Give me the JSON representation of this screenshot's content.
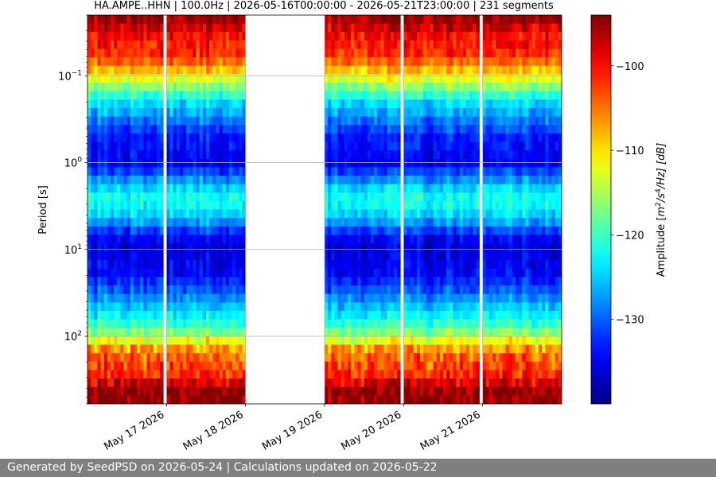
{
  "chart_data": {
    "type": "heatmap",
    "title": "HA.AMPE..HHN | 100.0Hz | 2026-05-16T00:00:00 - 2026-05-21T23:00:00 | 231 segments",
    "ylabel": "Period [s]",
    "y_scale": "log",
    "y_inverted": true,
    "y_range": [
      0.02,
      600
    ],
    "y_ticks": [
      {
        "value": 0.1,
        "base": "10",
        "exp": "−1"
      },
      {
        "value": 1,
        "base": "10",
        "exp": "0"
      },
      {
        "value": 10,
        "base": "10",
        "exp": "1"
      },
      {
        "value": 100,
        "base": "10",
        "exp": "2"
      }
    ],
    "x_range": [
      "2026-05-16T00:00:00",
      "2026-05-22T00:00:00"
    ],
    "x_ticks": [
      {
        "date": "2026-05-17",
        "label": "May 17 2026"
      },
      {
        "date": "2026-05-18",
        "label": "May 18 2026"
      },
      {
        "date": "2026-05-19",
        "label": "May 19 2026"
      },
      {
        "date": "2026-05-20",
        "label": "May 20 2026"
      },
      {
        "date": "2026-05-21",
        "label": "May 21 2026"
      }
    ],
    "grid": true,
    "data_gaps": [
      {
        "start": "2026-05-16T23:00:00",
        "end": "2026-05-17T00:00:00"
      },
      {
        "start": "2026-05-18T00:00:00",
        "end": "2026-05-19T00:00:00"
      },
      {
        "start": "2026-05-19T23:00:00",
        "end": "2026-05-20T00:00:00"
      },
      {
        "start": "2026-05-20T23:00:00",
        "end": "2026-05-21T00:00:00"
      }
    ],
    "amplitude_profile": [
      {
        "period": 0.02,
        "db": -94
      },
      {
        "period": 0.035,
        "db": -100
      },
      {
        "period": 0.06,
        "db": -102
      },
      {
        "period": 0.1,
        "db": -111
      },
      {
        "period": 0.2,
        "db": -124
      },
      {
        "period": 0.5,
        "db": -133
      },
      {
        "period": 1.0,
        "db": -135
      },
      {
        "period": 2.0,
        "db": -124
      },
      {
        "period": 2.5,
        "db": -122
      },
      {
        "period": 3.0,
        "db": -122
      },
      {
        "period": 4.5,
        "db": -126
      },
      {
        "period": 7.0,
        "db": -134
      },
      {
        "period": 10.0,
        "db": -136
      },
      {
        "period": 20.0,
        "db": -134
      },
      {
        "period": 40.0,
        "db": -127
      },
      {
        "period": 70.0,
        "db": -121
      },
      {
        "period": 100.0,
        "db": -115
      },
      {
        "period": 150.0,
        "db": -105
      },
      {
        "period": 300.0,
        "db": -101
      },
      {
        "period": 400.0,
        "db": -95
      },
      {
        "period": 600.0,
        "db": -94
      }
    ],
    "colorbar": {
      "label": "Amplitude [m²/s⁴/Hz] [dB]",
      "label_parts": {
        "a": "Amplitude [",
        "m": "m",
        "e1": "2",
        "s": "/s",
        "e2": "4",
        "tail": "/Hz] [dB]"
      },
      "range": [
        -140,
        -94
      ],
      "ticks": [
        {
          "value": -100,
          "label": "−100"
        },
        {
          "value": -110,
          "label": "−110"
        },
        {
          "value": -120,
          "label": "−120"
        },
        {
          "value": -130,
          "label": "−130"
        }
      ],
      "colormap": "jet"
    }
  },
  "footer": {
    "text": "Generated by SeedPSD on 2026-05-24 | Calculations updated on 2026-05-22"
  }
}
